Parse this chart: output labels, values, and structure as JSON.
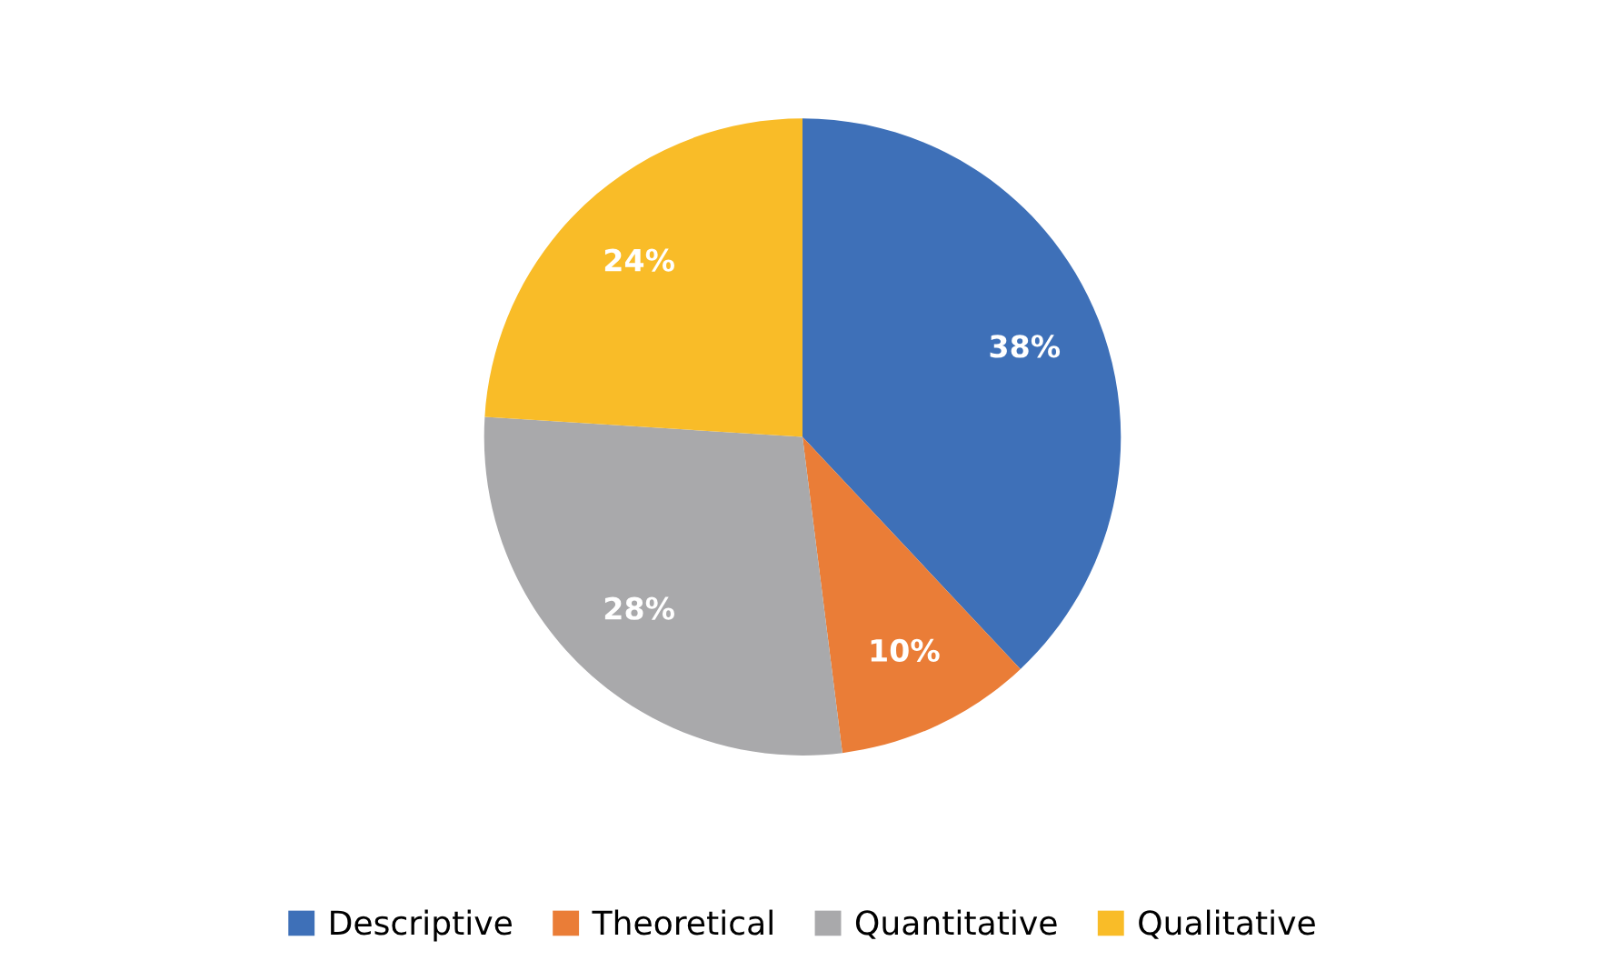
{
  "chart_data": {
    "type": "pie",
    "categories": [
      "Descriptive",
      "Theoretical",
      "Quantitative",
      "Qualitative"
    ],
    "values": [
      38,
      10,
      28,
      24
    ],
    "colors": [
      "#3e70b8",
      "#ea7d37",
      "#a9a9ab",
      "#f9bc28"
    ],
    "value_labels": [
      "38%",
      "10%",
      "28%",
      "24%"
    ],
    "legend": "bottom"
  }
}
